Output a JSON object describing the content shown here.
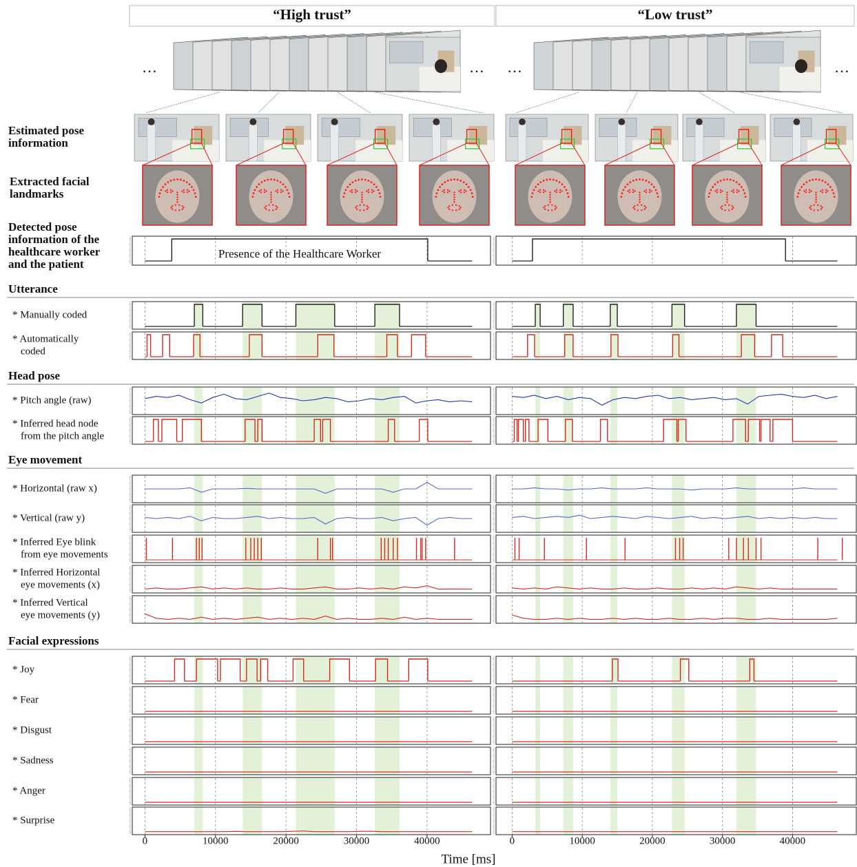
{
  "column_titles": [
    "“High trust”",
    "“Low trust”"
  ],
  "ellipsis": "…",
  "image_row_labels": [
    [
      "Estimated pose",
      "information"
    ],
    [
      "Extracted facial",
      "landmarks"
    ]
  ],
  "section_titles": [
    "Utterance",
    "Head pose",
    "Eye movement",
    "Facial expressions"
  ],
  "annotation": "Presence of the Healthcare Worker",
  "x_label": "Time [ms]",
  "rows": [
    {
      "label": [
        "Detected pose",
        "information of the",
        "healthcare worker",
        "and the patient"
      ],
      "kind": "step",
      "color": "#222222"
    },
    {
      "label": [
        "* Manually coded"
      ],
      "kind": "step",
      "color": "#222222"
    },
    {
      "label": [
        "* Automatically",
        "coded"
      ],
      "kind": "step",
      "color": "#d42a1e"
    },
    {
      "label": [
        "* Pitch angle (raw)"
      ],
      "kind": "line",
      "color": "#2233bb"
    },
    {
      "label": [
        "* Inferred head node",
        "from the pitch angle"
      ],
      "kind": "step",
      "color": "#d42a1e"
    },
    {
      "label": [
        "* Horizontal (raw x)"
      ],
      "kind": "line",
      "color": "#5566cc"
    },
    {
      "label": [
        "* Vertical (raw y)"
      ],
      "kind": "line",
      "color": "#5566cc"
    },
    {
      "label": [
        "* Inferred Eye blink",
        "from eye movements"
      ],
      "kind": "spikes",
      "color": "#d42a1e"
    },
    {
      "label": [
        "* Inferred Horizontal",
        "eye movements (x)"
      ],
      "kind": "line",
      "color": "#d42a1e"
    },
    {
      "label": [
        "* Inferred Vertical",
        "eye movements (y)"
      ],
      "kind": "line",
      "color": "#d42a1e"
    },
    {
      "label": [
        "* Joy"
      ],
      "kind": "step",
      "color": "#d42a1e"
    },
    {
      "label": [
        "* Fear"
      ],
      "kind": "step",
      "color": "#d42a1e"
    },
    {
      "label": [
        "* Disgust"
      ],
      "kind": "step",
      "color": "#d42a1e"
    },
    {
      "label": [
        "* Sadness"
      ],
      "kind": "step",
      "color": "#d42a1e"
    },
    {
      "label": [
        "* Anger"
      ],
      "kind": "step",
      "color": "#d42a1e"
    },
    {
      "label": [
        "* Surprise"
      ],
      "kind": "line",
      "color": "#d42a1e"
    }
  ],
  "columns": [
    {
      "xlim": [
        -1800,
        49000
      ],
      "xticks": [
        0,
        10000,
        20000,
        30000,
        40000
      ],
      "sample_times": [
        0,
        1600,
        3200,
        4800,
        6400,
        8000,
        9600,
        11200,
        12800,
        14400,
        16000,
        17600,
        19200,
        20800,
        22400,
        24000,
        25600,
        27200,
        28800,
        30400,
        32000,
        33600,
        35200,
        36800,
        38400,
        40000,
        41600,
        43200,
        44800,
        46400
      ],
      "highlights": [
        [
          7000,
          8200
        ],
        [
          13850,
          16600
        ],
        [
          21400,
          26900
        ],
        [
          32600,
          36100
        ]
      ],
      "signals": [
        {
          "ylim": [
            0,
            1
          ],
          "intervals": [
            [
              3800,
              40100
            ]
          ]
        },
        {
          "ylim": [
            0,
            1
          ],
          "intervals": [
            [
              7000,
              8200
            ],
            [
              13850,
              16600
            ],
            [
              21400,
              26900
            ],
            [
              32600,
              36100
            ]
          ]
        },
        {
          "ylim": [
            0,
            1
          ],
          "intervals": [
            [
              300,
              800
            ],
            [
              2500,
              3500
            ],
            [
              6900,
              7800
            ],
            [
              14800,
              16600
            ],
            [
              24500,
              26800
            ],
            [
              34300,
              35800
            ],
            [
              37800,
              39800
            ]
          ]
        },
        {
          "ylim": [
            -10,
            10
          ],
          "values": [
            2,
            4,
            3,
            5,
            1,
            -2,
            3,
            6,
            2,
            1,
            4,
            7,
            3,
            2,
            0,
            1,
            3,
            2,
            -1,
            0,
            2,
            1,
            3,
            4,
            -2,
            0,
            1,
            -1,
            0,
            -1
          ]
        },
        {
          "ylim": [
            0,
            1
          ],
          "intervals": [
            [
              1200,
              1900
            ],
            [
              2400,
              4500
            ],
            [
              5300,
              8000
            ],
            [
              14200,
              15600
            ],
            [
              16000,
              16600
            ],
            [
              24000,
              24900
            ],
            [
              25200,
              26300
            ],
            [
              34500,
              35400
            ],
            [
              38900,
              40100
            ]
          ]
        },
        {
          "ylim": [
            -10,
            10
          ],
          "values": [
            0,
            0,
            0,
            0,
            1,
            -3,
            0,
            0,
            0,
            0.5,
            0,
            0,
            0,
            0,
            0,
            0,
            -4,
            0,
            0,
            0,
            0,
            0,
            -3,
            0,
            0,
            6,
            0,
            0,
            0,
            0
          ]
        },
        {
          "ylim": [
            -10,
            10
          ],
          "values": [
            1,
            0,
            1,
            0,
            2,
            -2,
            1,
            0,
            0,
            1,
            2,
            0,
            1,
            0,
            0,
            1,
            -5,
            0,
            1,
            0,
            0,
            1,
            -2,
            0,
            1,
            -6,
            0,
            1,
            0,
            0
          ]
        },
        {
          "ylim": [
            0,
            1
          ],
          "times": [
            200,
            3900,
            7300,
            7700,
            8100,
            14300,
            15000,
            15500,
            16000,
            16500,
            24500,
            26300,
            26600,
            33500,
            34000,
            34500,
            35200,
            35800,
            38500,
            39100,
            39300,
            39800,
            43900
          ]
        },
        {
          "ylim": [
            0,
            20
          ],
          "values": [
            1,
            2,
            1,
            1,
            2,
            3,
            1,
            2,
            1,
            2,
            1,
            1,
            2,
            1,
            1,
            2,
            3,
            1,
            1,
            2,
            1,
            2,
            1,
            3,
            2,
            4,
            1,
            1,
            1,
            1
          ]
        },
        {
          "ylim": [
            0,
            20
          ],
          "values": [
            6,
            2,
            1,
            2,
            1,
            3,
            1,
            2,
            1,
            2,
            3,
            1,
            2,
            1,
            2,
            1,
            4,
            1,
            2,
            1,
            1,
            2,
            1,
            3,
            1,
            2,
            1,
            1,
            1,
            1
          ]
        },
        {
          "ylim": [
            0,
            1
          ],
          "intervals": [
            [
              4200,
              5600
            ],
            [
              7300,
              10300
            ],
            [
              10700,
              13500
            ],
            [
              14400,
              15900
            ],
            [
              16400,
              17400
            ],
            [
              21000,
              22500
            ],
            [
              26200,
              29000
            ],
            [
              32700,
              34400
            ],
            [
              37400,
              40100
            ]
          ]
        },
        {
          "ylim": [
            0,
            1
          ],
          "intervals": []
        },
        {
          "ylim": [
            0,
            1
          ],
          "intervals": []
        },
        {
          "ylim": [
            0,
            1
          ],
          "intervals": []
        },
        {
          "ylim": [
            0,
            1
          ],
          "intervals": []
        },
        {
          "ylim": [
            0,
            100
          ],
          "values": [
            1,
            1,
            1,
            1,
            1,
            1,
            1,
            1,
            2,
            1,
            1,
            1,
            1,
            2,
            4,
            1,
            1,
            1,
            1,
            2,
            3,
            1,
            1,
            1,
            1,
            1,
            1,
            1,
            1,
            1
          ]
        }
      ]
    },
    {
      "xlim": [
        -2300,
        49100
      ],
      "xticks": [
        0,
        10000,
        20000,
        30000,
        40000
      ],
      "sample_times": [
        0,
        1600,
        3200,
        4800,
        6400,
        8000,
        9600,
        11200,
        12800,
        14400,
        16000,
        17600,
        19200,
        20800,
        22400,
        24000,
        25600,
        27200,
        28800,
        30400,
        32000,
        33600,
        35200,
        36800,
        38400,
        40000,
        41600,
        43200,
        44800,
        46400
      ],
      "highlights": [
        [
          3300,
          4000
        ],
        [
          7300,
          8700
        ],
        [
          14000,
          15000
        ],
        [
          22800,
          24600
        ],
        [
          32000,
          34800
        ]
      ],
      "signals": [
        {
          "ylim": [
            0,
            1
          ],
          "intervals": [
            [
              2900,
              39000
            ]
          ]
        },
        {
          "ylim": [
            0,
            1
          ],
          "intervals": [
            [
              3300,
              4000
            ],
            [
              7300,
              8700
            ],
            [
              14000,
              15000
            ],
            [
              22800,
              24600
            ],
            [
              32000,
              34800
            ]
          ]
        },
        {
          "ylim": [
            0,
            1
          ],
          "intervals": [
            [
              2200,
              3200
            ],
            [
              7500,
              8700
            ],
            [
              14100,
              15100
            ],
            [
              22900,
              23800
            ],
            [
              32700,
              34600
            ],
            [
              37000,
              38600
            ]
          ]
        },
        {
          "ylim": [
            -10,
            10
          ],
          "values": [
            4,
            3,
            5,
            2,
            4,
            1,
            3,
            2,
            -4,
            1,
            3,
            2,
            4,
            5,
            2,
            3,
            1,
            2,
            3,
            1,
            2,
            -3,
            4,
            5,
            6,
            4,
            3,
            5,
            2,
            4
          ]
        },
        {
          "ylim": [
            0,
            1
          ],
          "intervals": [
            [
              300,
              700
            ],
            [
              900,
              1600
            ],
            [
              1900,
              2400
            ],
            [
              3700,
              5100
            ],
            [
              7600,
              8600
            ],
            [
              12600,
              13600
            ],
            [
              21600,
              23500
            ],
            [
              23700,
              24800
            ],
            [
              31500,
              33300
            ],
            [
              33700,
              35300
            ],
            [
              35500,
              36800
            ],
            [
              37200,
              40000
            ]
          ]
        },
        {
          "ylim": [
            -10,
            10
          ],
          "values": [
            0,
            0,
            1,
            0,
            0,
            -1,
            0,
            0,
            1,
            0,
            0,
            0,
            1,
            0,
            0,
            0,
            -1,
            0,
            0,
            0,
            1,
            0,
            0,
            0,
            0,
            0,
            1,
            0,
            0,
            0
          ]
        },
        {
          "ylim": [
            -10,
            10
          ],
          "values": [
            1,
            2,
            0,
            1,
            2,
            1,
            3,
            0,
            1,
            2,
            1,
            0,
            2,
            1,
            0,
            1,
            2,
            0,
            1,
            0,
            1,
            2,
            0,
            1,
            0,
            1,
            0,
            1,
            0,
            0
          ]
        },
        {
          "ylim": [
            0,
            1
          ],
          "times": [
            400,
            1000,
            4600,
            10600,
            16100,
            23300,
            23900,
            24400,
            30900,
            32000,
            33000,
            33700,
            34800,
            35500,
            43600,
            47100
          ]
        },
        {
          "ylim": [
            0,
            20
          ],
          "values": [
            2,
            1,
            2,
            1,
            3,
            2,
            1,
            2,
            1,
            1,
            2,
            1,
            1,
            2,
            1,
            1,
            2,
            1,
            2,
            1,
            3,
            2,
            1,
            2,
            1,
            1,
            1,
            1,
            1,
            1
          ]
        },
        {
          "ylim": [
            0,
            20
          ],
          "values": [
            5,
            2,
            1,
            1,
            2,
            1,
            2,
            1,
            1,
            2,
            1,
            2,
            1,
            1,
            2,
            1,
            1,
            2,
            1,
            2,
            2,
            1,
            1,
            2,
            1,
            1,
            1,
            1,
            1,
            2
          ]
        },
        {
          "ylim": [
            0,
            1
          ],
          "intervals": [
            [
              14300,
              15100
            ],
            [
              24000,
              25200
            ],
            [
              33900,
              34500
            ]
          ]
        },
        {
          "ylim": [
            0,
            1
          ],
          "intervals": []
        },
        {
          "ylim": [
            0,
            1
          ],
          "intervals": []
        },
        {
          "ylim": [
            0,
            1
          ],
          "intervals": []
        },
        {
          "ylim": [
            0,
            1
          ],
          "intervals": []
        },
        {
          "ylim": [
            0,
            100
          ],
          "values": [
            1,
            1,
            1,
            1,
            1,
            1,
            1,
            1,
            1,
            1,
            1,
            1,
            1,
            1,
            1,
            1,
            1,
            1,
            1,
            1,
            1,
            1,
            1,
            1,
            1,
            1,
            1,
            1,
            1,
            1
          ]
        }
      ]
    }
  ]
}
